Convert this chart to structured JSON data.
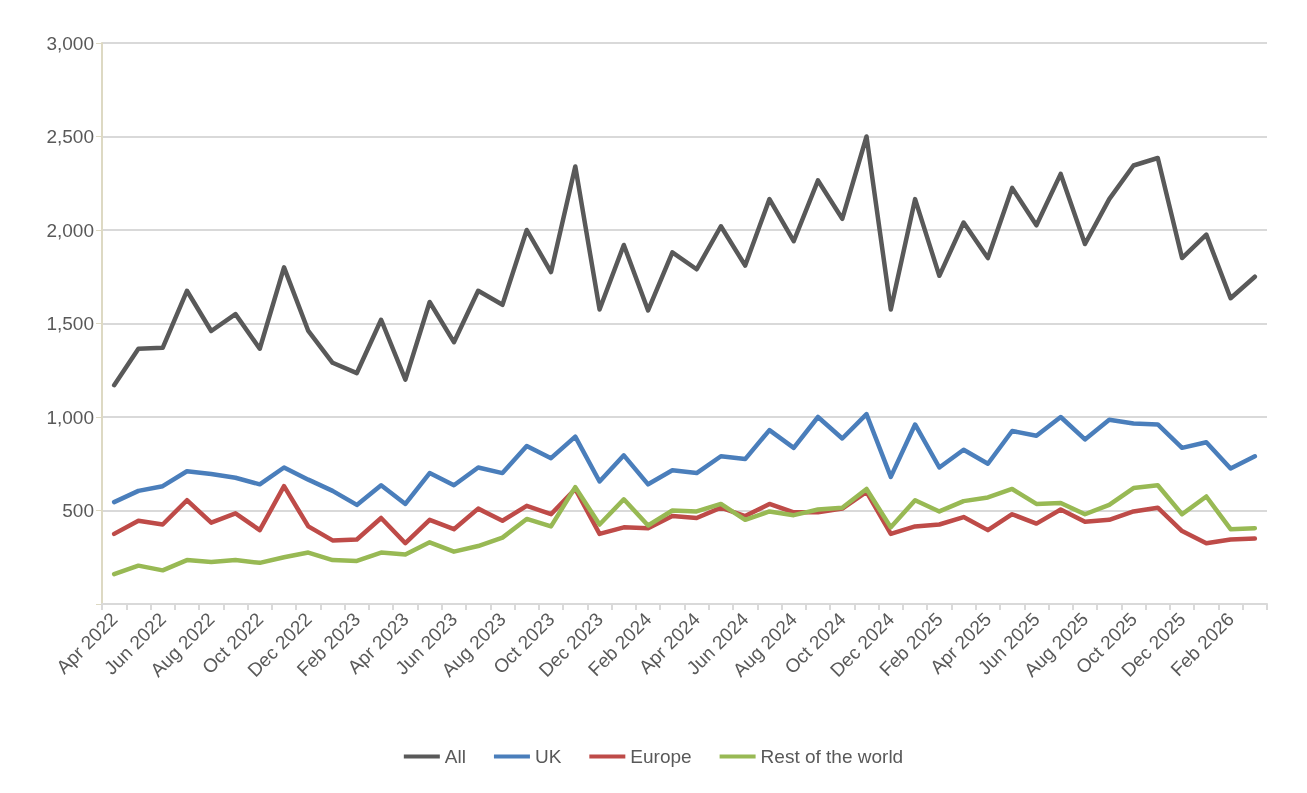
{
  "chart_data": {
    "type": "line",
    "categories": [
      "Apr 2022",
      null,
      "Jun 2022",
      null,
      "Aug 2022",
      null,
      "Oct 2022",
      null,
      "Dec 2022",
      null,
      "Feb 2023",
      null,
      "Apr 2023",
      null,
      "Jun 2023",
      null,
      "Aug 2023",
      null,
      "Oct 2023",
      null,
      "Dec 2023",
      null,
      "Feb 2024",
      null,
      "Apr 2024",
      null,
      "Jun 2024",
      null,
      "Aug 2024",
      null,
      "Oct 2024",
      null,
      "Dec 2024",
      null,
      "Feb 2025",
      null,
      "Apr 2025",
      null,
      "Jun 2025",
      null,
      "Aug 2025",
      null,
      "Oct 2025",
      null,
      "Dec 2025",
      null,
      "Feb 2026",
      null
    ],
    "series": [
      {
        "name": "All",
        "color": "#595959",
        "values": [
          1170,
          1365,
          1370,
          1675,
          1460,
          1550,
          1365,
          1800,
          1460,
          1290,
          1235,
          1520,
          1200,
          1615,
          1400,
          1675,
          1600,
          2000,
          1775,
          2340,
          1575,
          1920,
          1570,
          1880,
          1790,
          2020,
          1810,
          2165,
          1940,
          2265,
          2060,
          2500,
          1575,
          2165,
          1755,
          2040,
          1850,
          2225,
          2025,
          2300,
          1925,
          2165,
          2345,
          2385,
          1850,
          1975,
          1635,
          1750
        ]
      },
      {
        "name": "UK",
        "color": "#4a7ebb",
        "values": [
          545,
          605,
          630,
          710,
          695,
          675,
          640,
          730,
          665,
          605,
          530,
          635,
          535,
          700,
          635,
          730,
          700,
          845,
          780,
          895,
          655,
          795,
          640,
          715,
          700,
          790,
          775,
          930,
          835,
          1000,
          885,
          1015,
          680,
          960,
          730,
          825,
          750,
          925,
          900,
          1000,
          880,
          985,
          965,
          960,
          835,
          865,
          725,
          790
        ]
      },
      {
        "name": "Europe",
        "color": "#be4b48",
        "values": [
          375,
          445,
          425,
          555,
          435,
          485,
          395,
          630,
          415,
          340,
          345,
          460,
          325,
          450,
          400,
          510,
          445,
          525,
          480,
          615,
          375,
          410,
          405,
          470,
          460,
          515,
          470,
          535,
          490,
          490,
          510,
          600,
          375,
          415,
          425,
          465,
          395,
          480,
          430,
          505,
          440,
          450,
          495,
          515,
          390,
          325,
          345,
          350
        ]
      },
      {
        "name": "Rest of the world",
        "color": "#98b954",
        "values": [
          160,
          205,
          180,
          235,
          225,
          235,
          220,
          250,
          275,
          235,
          230,
          275,
          265,
          330,
          280,
          310,
          355,
          455,
          415,
          625,
          425,
          560,
          420,
          500,
          495,
          535,
          450,
          495,
          475,
          505,
          515,
          615,
          410,
          555,
          495,
          550,
          570,
          615,
          535,
          540,
          480,
          530,
          620,
          635,
          480,
          575,
          400,
          405
        ]
      }
    ],
    "ylim": [
      0,
      3000
    ],
    "yticks": [
      {
        "value": 0,
        "label": null
      },
      {
        "value": 500,
        "label": "500"
      },
      {
        "value": 1000,
        "label": "1,000"
      },
      {
        "value": 1500,
        "label": "1,500"
      },
      {
        "value": 2000,
        "label": "2,000"
      },
      {
        "value": 2500,
        "label": "2,500"
      },
      {
        "value": 3000,
        "label": "3,000"
      }
    ],
    "grid": "y",
    "legend": "bottom",
    "marker": "none",
    "line_style": "solid"
  }
}
